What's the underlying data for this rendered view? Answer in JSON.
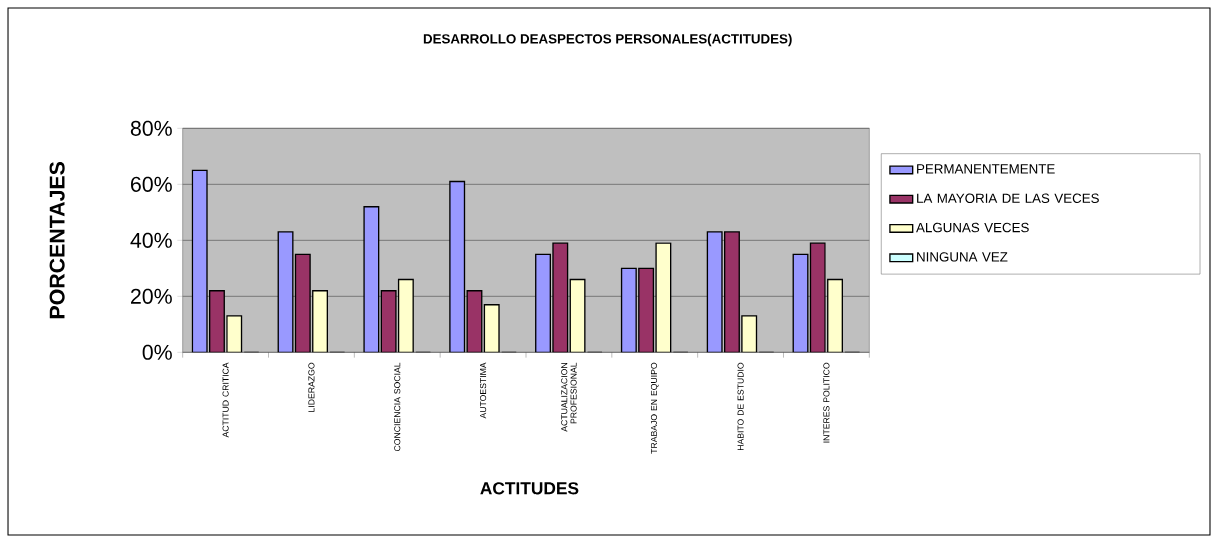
{
  "chart_data": {
    "type": "bar",
    "title": "DESARROLLO DEASPECTOS PERSONALES(ACTITUDES)",
    "xlabel": "ACTITUDES",
    "ylabel": "PORCENTAJES",
    "categories": [
      "ACTITUD CRITICA",
      "LIDERAZGO",
      "CONCIENCIA SOCIAL",
      "AUTOESTIMA",
      "ACTUALIZACION PROFESIONAL",
      "TRABAJO EN EQUIPO",
      "HABITO DE ESTUDIO",
      "INTERES POLITICO"
    ],
    "series": [
      {
        "name": "PERMANENTEMENTE",
        "color": "#9999ff",
        "values": [
          65,
          43,
          52,
          61,
          35,
          30,
          43,
          35
        ]
      },
      {
        "name": "LA MAYORIA DE LAS VECES",
        "color": "#993366",
        "values": [
          22,
          35,
          22,
          22,
          39,
          30,
          43,
          39
        ]
      },
      {
        "name": "ALGUNAS VECES",
        "color": "#ffffcc",
        "values": [
          13,
          22,
          26,
          17,
          26,
          39,
          13,
          26
        ]
      },
      {
        "name": "NINGUNA VEZ",
        "color": "#ccffff",
        "values": [
          0,
          0,
          0,
          0,
          0,
          0,
          0,
          0
        ]
      }
    ],
    "ylim": [
      0,
      80
    ],
    "yticks": [
      {
        "value": 0,
        "label": "0%"
      },
      {
        "value": 20,
        "label": "20%"
      },
      {
        "value": 40,
        "label": "40%"
      },
      {
        "value": 60,
        "label": "60%"
      },
      {
        "value": 80,
        "label": "80%"
      }
    ],
    "grid": "y",
    "legend": "right"
  }
}
